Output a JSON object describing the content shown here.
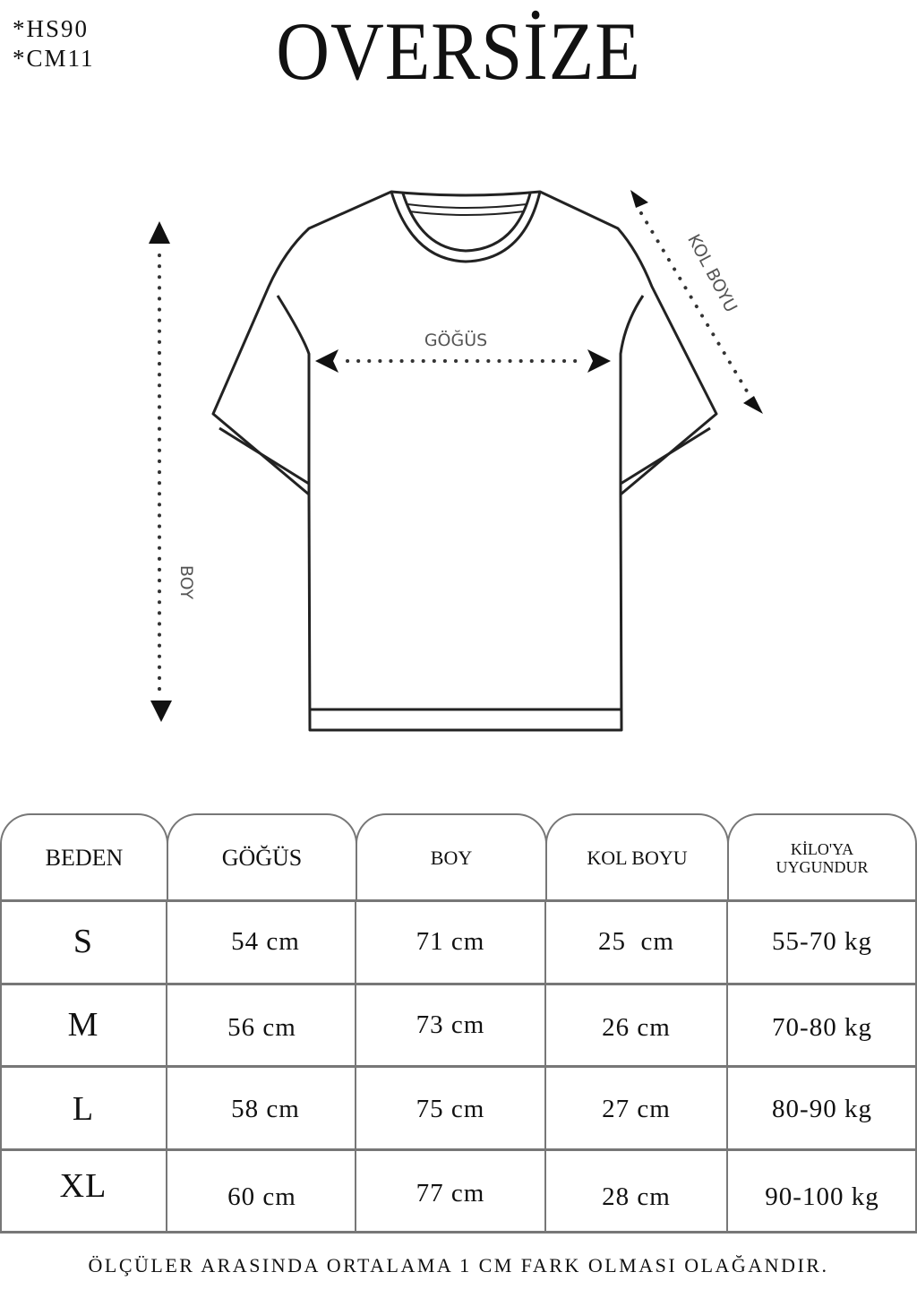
{
  "codes": [
    "*HS90",
    "*CM11"
  ],
  "title": "OVERSİZE",
  "diagram": {
    "chest_label": "GÖĞÜS",
    "length_label": "BOY",
    "sleeve_label": "KOL BOYU"
  },
  "table": {
    "headers": [
      "BEDEN",
      "GÖĞÜS",
      "BOY",
      "KOL BOYU",
      "KİLO'YA",
      "UYGUNDUR"
    ],
    "rows": [
      [
        "S",
        "54 cm",
        "71 cm",
        "25  cm",
        "55-70 kg"
      ],
      [
        "M",
        "56 cm",
        "73 cm",
        "26 cm",
        "70-80 kg"
      ],
      [
        "L",
        "58 cm",
        "75 cm",
        "27 cm",
        "80-90 kg"
      ],
      [
        "XL",
        "60 cm",
        "77 cm",
        "28 cm",
        "90-100 kg"
      ]
    ]
  },
  "footer": "ÖLÇÜLER ARASINDA ORTALAMA 1 CM FARK OLMASI OLAĞANDIR."
}
